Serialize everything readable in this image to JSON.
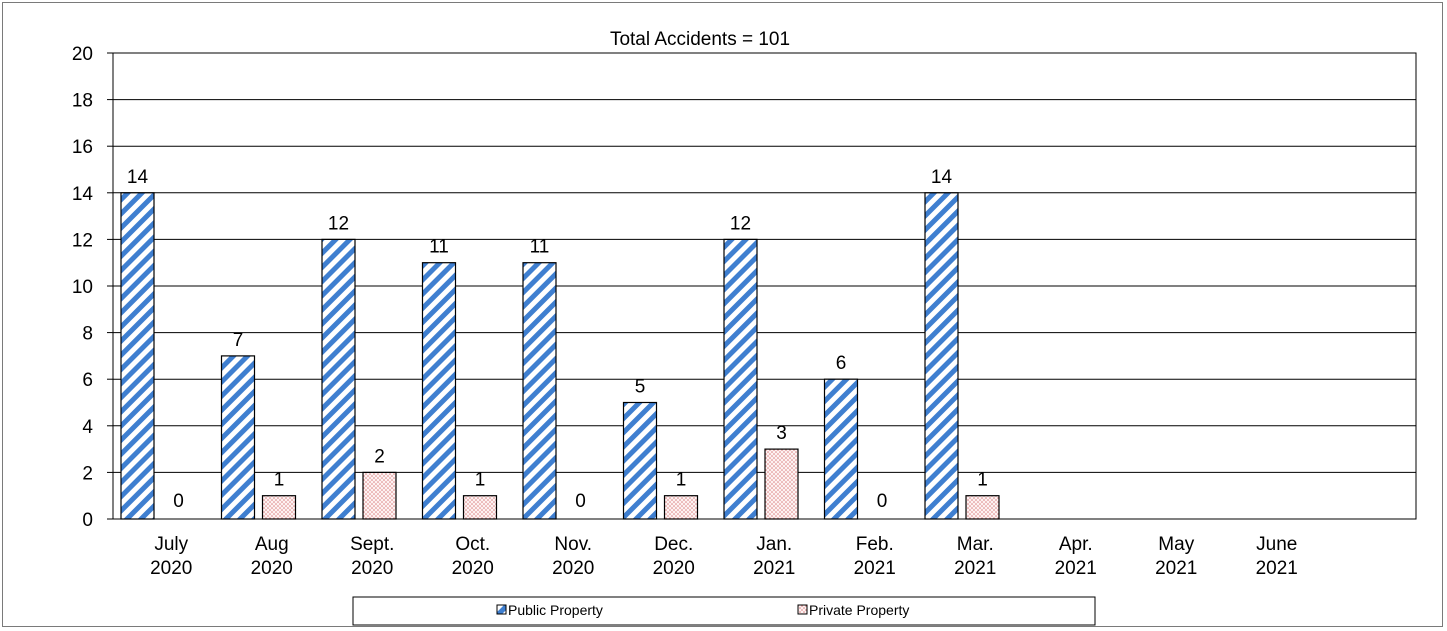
{
  "chart_data": {
    "type": "bar",
    "title": "Total Accidents = 101",
    "xlabel": "",
    "ylabel": "",
    "ylim": [
      0,
      20
    ],
    "yticks": [
      0,
      2,
      4,
      6,
      8,
      10,
      12,
      14,
      16,
      18,
      20
    ],
    "grid": true,
    "legend_position": "bottom",
    "categories": [
      [
        "July",
        "2020"
      ],
      [
        "Aug",
        "2020"
      ],
      [
        "Sept.",
        "2020"
      ],
      [
        "Oct.",
        "2020"
      ],
      [
        "Nov.",
        "2020"
      ],
      [
        "Dec.",
        "2020"
      ],
      [
        "Jan.",
        "2021"
      ],
      [
        "Feb.",
        "2021"
      ],
      [
        "Mar.",
        "2021"
      ],
      [
        "Apr.",
        "2021"
      ],
      [
        "May",
        "2021"
      ],
      [
        "June",
        "2021"
      ]
    ],
    "series": [
      {
        "name": "Public Property",
        "color": "#3f7fd0",
        "pattern": "diagonal-hatch",
        "values": [
          14,
          7,
          12,
          11,
          11,
          5,
          12,
          6,
          14,
          null,
          null,
          null
        ]
      },
      {
        "name": "Private Property",
        "color": "#e8a8a8",
        "pattern": "dotted",
        "values": [
          0,
          1,
          2,
          1,
          0,
          1,
          3,
          0,
          1,
          null,
          null,
          null
        ]
      }
    ]
  }
}
